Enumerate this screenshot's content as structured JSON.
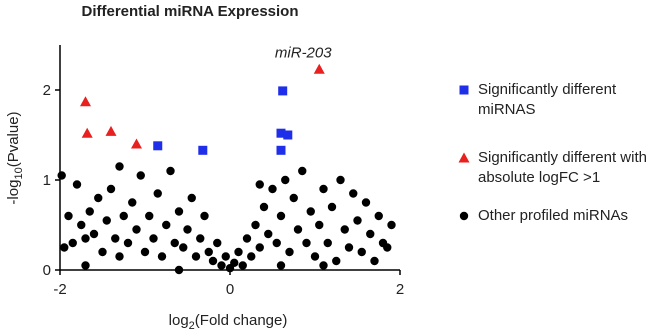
{
  "chart_data": {
    "type": "scatter",
    "title": "Differential miRNA Expression",
    "ylabel": [
      "-log",
      "10",
      "(Pvalue)"
    ],
    "xlabel": [
      "log",
      "2",
      "(Fold change)"
    ],
    "annotation": {
      "text": "miR-203",
      "x": 1.05,
      "y": 2.23
    },
    "xlim": [
      -2,
      2
    ],
    "ylim": [
      0,
      2.5
    ],
    "xticks": [
      -2,
      0,
      2
    ],
    "yticks": [
      0,
      1,
      2
    ],
    "series": [
      {
        "name": "Significantly different miRNAS",
        "color": "#1f2ee8",
        "marker": "square",
        "x": [
          -0.85,
          -0.32,
          0.62,
          0.6,
          0.68,
          0.6
        ],
        "values": [
          1.38,
          1.33,
          1.99,
          1.52,
          1.5,
          1.33
        ]
      },
      {
        "name": "Significantly different with absolute logFC >1",
        "color": "#e8201f",
        "marker": "triangle",
        "x": [
          -1.7,
          -1.68,
          -1.4,
          -1.1,
          1.05
        ],
        "values": [
          1.87,
          1.52,
          1.54,
          1.4,
          2.23
        ]
      },
      {
        "name": "Other profiled miRNAs",
        "color": "#000000",
        "marker": "circle",
        "x": [
          -1.98,
          -1.95,
          -1.9,
          -1.85,
          -1.8,
          -1.75,
          -1.7,
          -1.65,
          -1.6,
          -1.55,
          -1.5,
          -1.45,
          -1.4,
          -1.35,
          -1.3,
          -1.25,
          -1.2,
          -1.15,
          -1.1,
          -1.05,
          -1.0,
          -0.95,
          -0.9,
          -0.85,
          -0.8,
          -0.75,
          -0.7,
          -0.65,
          -0.6,
          -0.55,
          -0.5,
          -0.45,
          -0.4,
          -0.35,
          -0.3,
          -0.25,
          -0.2,
          -0.15,
          -0.1,
          -0.05,
          0,
          0.05,
          0.1,
          0.15,
          0.2,
          0.25,
          0.3,
          0.35,
          0.4,
          0.45,
          0.5,
          0.55,
          0.6,
          0.65,
          0.7,
          0.75,
          0.8,
          0.85,
          0.9,
          0.95,
          1.0,
          1.05,
          1.1,
          1.15,
          1.2,
          1.25,
          1.3,
          1.35,
          1.4,
          1.45,
          1.5,
          1.55,
          1.6,
          1.65,
          1.7,
          1.75,
          1.8,
          1.85,
          1.9,
          -1.7,
          -0.6,
          0.6,
          1.1,
          -1.3,
          0.35
        ],
        "values": [
          1.05,
          0.25,
          0.6,
          0.3,
          0.95,
          0.5,
          0.05,
          0.65,
          0.4,
          0.8,
          0.2,
          0.55,
          0.9,
          0.35,
          1.15,
          0.6,
          0.3,
          0.75,
          0.45,
          1.05,
          0.2,
          0.6,
          0.35,
          0.85,
          0.15,
          0.5,
          1.1,
          0.3,
          0.65,
          0.25,
          0.45,
          0.8,
          0.15,
          0.35,
          0.6,
          0.2,
          0.1,
          0.3,
          0.05,
          0.15,
          0.02,
          0.08,
          0.2,
          0.05,
          0.35,
          0.15,
          0.5,
          0.25,
          0.7,
          0.4,
          0.9,
          0.3,
          0.6,
          1.0,
          0.2,
          0.8,
          0.45,
          1.1,
          0.3,
          0.65,
          0.15,
          0.5,
          0.9,
          0.3,
          0.7,
          0.1,
          1.0,
          0.45,
          0.25,
          0.85,
          0.55,
          0.2,
          0.75,
          0.4,
          0.1,
          0.6,
          0.3,
          0.25,
          0.5,
          0.35,
          0.0,
          0.05,
          0.05,
          0.15,
          0.95
        ]
      }
    ]
  }
}
